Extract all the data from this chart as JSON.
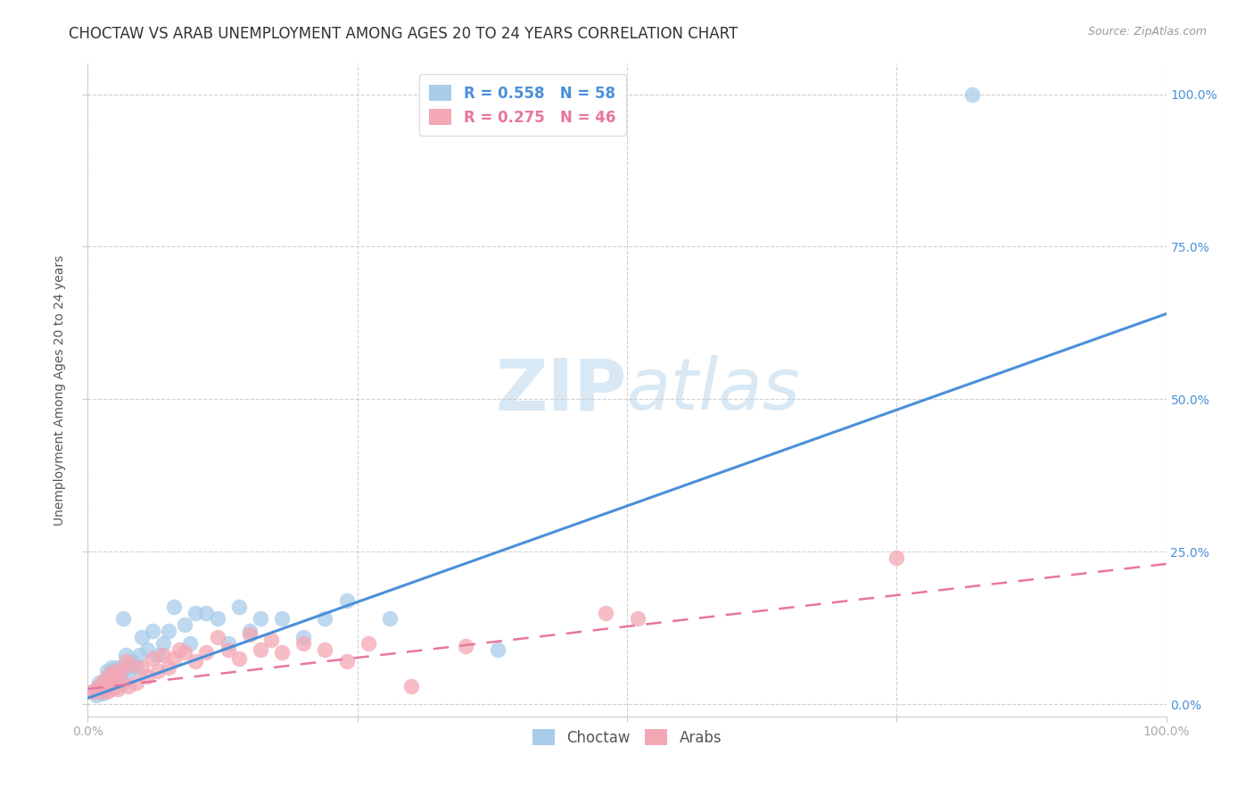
{
  "title": "CHOCTAW VS ARAB UNEMPLOYMENT AMONG AGES 20 TO 24 YEARS CORRELATION CHART",
  "source": "Source: ZipAtlas.com",
  "ylabel": "Unemployment Among Ages 20 to 24 years",
  "xlim": [
    0,
    1.0
  ],
  "ylim": [
    -0.02,
    1.05
  ],
  "xticks": [
    0.0,
    0.25,
    0.5,
    0.75,
    1.0
  ],
  "yticks": [
    0.0,
    0.25,
    0.5,
    0.75,
    1.0
  ],
  "xtick_labels_bottom": [
    "0.0%",
    "",
    "",
    "",
    "100.0%"
  ],
  "right_ytick_labels": [
    "0.0%",
    "25.0%",
    "50.0%",
    "75.0%",
    "100.0%"
  ],
  "choctaw_color": "#A8CCEA",
  "arab_color": "#F4A7B5",
  "choctaw_line_color": "#4A90D9",
  "arab_line_color": "#E8769A",
  "choctaw_R": 0.558,
  "choctaw_N": 58,
  "arab_R": 0.275,
  "arab_N": 46,
  "background_color": "#FFFFFF",
  "grid_color": "#CCCCCC",
  "watermark_zip": "ZIP",
  "watermark_atlas": "atlas",
  "watermark_color": "#D8E8F4",
  "choctaw_x": [
    0.005,
    0.008,
    0.01,
    0.01,
    0.012,
    0.013,
    0.014,
    0.015,
    0.015,
    0.016,
    0.017,
    0.018,
    0.018,
    0.019,
    0.02,
    0.02,
    0.021,
    0.022,
    0.022,
    0.023,
    0.024,
    0.025,
    0.026,
    0.027,
    0.028,
    0.03,
    0.032,
    0.033,
    0.035,
    0.036,
    0.038,
    0.04,
    0.042,
    0.045,
    0.048,
    0.05,
    0.055,
    0.06,
    0.065,
    0.07,
    0.075,
    0.08,
    0.09,
    0.095,
    0.1,
    0.11,
    0.12,
    0.13,
    0.14,
    0.15,
    0.16,
    0.18,
    0.2,
    0.22,
    0.24,
    0.28,
    0.38,
    0.82
  ],
  "choctaw_y": [
    0.02,
    0.015,
    0.025,
    0.035,
    0.02,
    0.03,
    0.018,
    0.025,
    0.04,
    0.03,
    0.025,
    0.035,
    0.055,
    0.025,
    0.025,
    0.045,
    0.035,
    0.04,
    0.06,
    0.03,
    0.055,
    0.035,
    0.06,
    0.03,
    0.055,
    0.045,
    0.06,
    0.14,
    0.08,
    0.06,
    0.055,
    0.07,
    0.07,
    0.06,
    0.08,
    0.11,
    0.09,
    0.12,
    0.08,
    0.1,
    0.12,
    0.16,
    0.13,
    0.1,
    0.15,
    0.15,
    0.14,
    0.1,
    0.16,
    0.12,
    0.14,
    0.14,
    0.11,
    0.14,
    0.17,
    0.14,
    0.09,
    1.0
  ],
  "arab_x": [
    0.005,
    0.008,
    0.01,
    0.012,
    0.014,
    0.015,
    0.016,
    0.018,
    0.02,
    0.022,
    0.024,
    0.026,
    0.028,
    0.03,
    0.032,
    0.035,
    0.038,
    0.04,
    0.045,
    0.05,
    0.055,
    0.06,
    0.065,
    0.07,
    0.075,
    0.08,
    0.085,
    0.09,
    0.1,
    0.11,
    0.12,
    0.13,
    0.14,
    0.15,
    0.16,
    0.17,
    0.18,
    0.2,
    0.22,
    0.24,
    0.26,
    0.3,
    0.35,
    0.48,
    0.51,
    0.75
  ],
  "arab_y": [
    0.02,
    0.025,
    0.03,
    0.02,
    0.035,
    0.025,
    0.04,
    0.02,
    0.05,
    0.025,
    0.04,
    0.055,
    0.025,
    0.055,
    0.035,
    0.07,
    0.03,
    0.065,
    0.035,
    0.06,
    0.045,
    0.075,
    0.055,
    0.08,
    0.06,
    0.075,
    0.09,
    0.085,
    0.07,
    0.085,
    0.11,
    0.09,
    0.075,
    0.115,
    0.09,
    0.105,
    0.085,
    0.1,
    0.09,
    0.07,
    0.1,
    0.03,
    0.095,
    0.15,
    0.14,
    0.24
  ],
  "choctaw_trend_x": [
    0.0,
    1.0
  ],
  "choctaw_trend_y": [
    0.01,
    0.64
  ],
  "arab_trend_x": [
    0.0,
    1.0
  ],
  "arab_trend_y": [
    0.025,
    0.23
  ],
  "title_fontsize": 12,
  "axis_label_fontsize": 10,
  "tick_fontsize": 10,
  "legend_fontsize": 12
}
